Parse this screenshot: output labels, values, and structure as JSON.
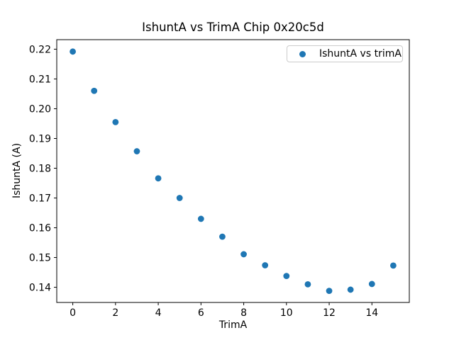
{
  "chart_data": {
    "type": "scatter",
    "title": "IshuntA vs TrimA Chip 0x20c5d",
    "xlabel": "TrimA",
    "ylabel": "IshuntA (A)",
    "legend_entries": [
      "IshuntA vs trimA"
    ],
    "legend_position": "upper right",
    "marker_color": "#1f77b4",
    "x": [
      0,
      1,
      2,
      3,
      4,
      5,
      6,
      7,
      8,
      9,
      10,
      11,
      12,
      13,
      14,
      15
    ],
    "y": [
      0.2192,
      0.206,
      0.1955,
      0.1857,
      0.1766,
      0.17,
      0.163,
      0.157,
      0.1511,
      0.1474,
      0.1438,
      0.141,
      0.1388,
      0.1392,
      0.1411,
      0.1473
    ],
    "xlim": [
      -0.75,
      15.75
    ],
    "ylim": [
      0.1349,
      0.2232
    ],
    "xticks": [
      0,
      2,
      4,
      6,
      8,
      10,
      12,
      14
    ],
    "xtick_labels": [
      "0",
      "2",
      "4",
      "6",
      "8",
      "10",
      "12",
      "14"
    ],
    "ytick_values": [
      0.14,
      0.15,
      0.16,
      0.17,
      0.18,
      0.19,
      0.2,
      0.21,
      0.22
    ],
    "ytick_labels": [
      "0.14",
      "0.15",
      "0.16",
      "0.17",
      "0.18",
      "0.19",
      "0.20",
      "0.21",
      "0.22"
    ],
    "grid": false,
    "spine_color": "#000000"
  }
}
